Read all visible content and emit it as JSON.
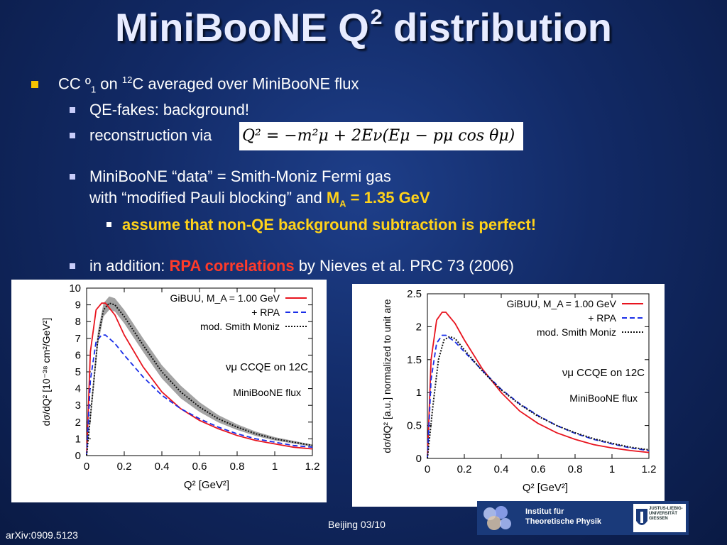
{
  "title": {
    "main": "MiniBooNE Q",
    "sup": "2",
    "rest": " distribution"
  },
  "bullets": {
    "b1": {
      "pre": "CC º",
      "sub": "1",
      "mid": " on ",
      "sup": "12",
      "post": "C averaged over MiniBooNE flux"
    },
    "b2a": "QE-fakes: background!",
    "b2b": "reconstruction via",
    "b2c_line1": "MiniBooNE “data” = Smith-Moniz Fermi gas",
    "b2c_line2_pre": "with “modified Pauli blocking” and ",
    "b2c_line2_ma": "M",
    "b2c_line2_ma_sub": "A",
    "b2c_line2_val": " = 1.35 GeV",
    "b3": "assume that non-QE background subtraction is perfect!",
    "b2d_pre": "in addition: ",
    "b2d_red": "RPA correlations",
    "b2d_post": " by Nieves et al. PRC 73 (2006)"
  },
  "formula": "Q² = −m²μ + 2Eν(Eμ − pμ cos θμ)",
  "footer": {
    "left": "arXiv:0909.5123",
    "mid": "Beijing 03/10"
  },
  "logo": {
    "line1": "Institut für",
    "line2": "Theoretische Physik",
    "uni1": "JUSTUS-LIEBIG-",
    "uni2": "UNIVERSITÄT",
    "uni3": "GIESSEN"
  },
  "colors": {
    "accent_yellow": "#ffd21a",
    "accent_red": "#ff3b2a",
    "bullet_yellow": "#f5c400",
    "bg": "#122a66"
  },
  "chart_data": [
    {
      "type": "line",
      "xlabel": "Q² [GeV²]",
      "ylabel": "dσ/dQ² [10⁻³⁸ cm²/GeV²]",
      "xlim": [
        0,
        1.2
      ],
      "ylim": [
        0,
        10
      ],
      "xticks": [
        "0",
        "0.2",
        "0.4",
        "0.6",
        "0.8",
        "1",
        "1.2"
      ],
      "yticks": [
        "0",
        "1",
        "2",
        "3",
        "4",
        "5",
        "6",
        "7",
        "8",
        "9",
        "10"
      ],
      "legend": [
        "GiBUU, M_A = 1.00 GeV",
        "+ RPA",
        "mod. Smith Moniz"
      ],
      "annotations": [
        "νμ CCQE on 12C",
        "MiniBooNE flux"
      ],
      "legend_placement": "top-right",
      "series": [
        {
          "name": "GiBUU, M_A = 1.00 GeV",
          "style": "solid",
          "color": "#e8141e",
          "x": [
            0.0,
            0.02,
            0.05,
            0.08,
            0.1,
            0.15,
            0.2,
            0.3,
            0.4,
            0.5,
            0.6,
            0.7,
            0.8,
            0.9,
            1.0,
            1.1,
            1.2
          ],
          "y": [
            0.0,
            6.2,
            8.7,
            9.1,
            9.1,
            8.4,
            7.2,
            5.3,
            3.8,
            2.8,
            2.1,
            1.6,
            1.2,
            0.9,
            0.7,
            0.5,
            0.4
          ]
        },
        {
          "name": "+ RPA",
          "style": "dashed",
          "color": "#1a2ee8",
          "x": [
            0.0,
            0.02,
            0.05,
            0.08,
            0.1,
            0.15,
            0.2,
            0.3,
            0.4,
            0.5,
            0.6,
            0.7,
            0.8,
            0.9,
            1.0,
            1.1,
            1.2
          ],
          "y": [
            0.0,
            4.5,
            6.8,
            7.2,
            7.2,
            6.7,
            6.0,
            4.7,
            3.6,
            2.8,
            2.2,
            1.7,
            1.3,
            1.0,
            0.8,
            0.6,
            0.5
          ]
        },
        {
          "name": "mod. Smith Moniz",
          "style": "dotted",
          "color": "#111111",
          "x": [
            0.0,
            0.03,
            0.06,
            0.09,
            0.12,
            0.15,
            0.2,
            0.3,
            0.4,
            0.5,
            0.6,
            0.7,
            0.8,
            0.9,
            1.0,
            1.1,
            1.2
          ],
          "y": [
            0.0,
            3.5,
            7.0,
            8.7,
            9.1,
            9.0,
            8.3,
            6.6,
            5.0,
            3.8,
            2.9,
            2.2,
            1.7,
            1.3,
            1.0,
            0.8,
            0.6
          ]
        }
      ],
      "band": {
        "around": "mod. Smith Moniz",
        "width": 0.4,
        "color": "#999999"
      }
    },
    {
      "type": "line",
      "xlabel": "Q² [GeV²]",
      "ylabel": "dσ/dQ² [a.u.] normalized to unit are",
      "xlim": [
        0,
        1.2
      ],
      "ylim": [
        0,
        2.5
      ],
      "xticks": [
        "0",
        "0.2",
        "0.4",
        "0.6",
        "0.8",
        "1",
        "1.2"
      ],
      "yticks": [
        "0",
        "0.5",
        "1",
        "1.5",
        "2",
        "2.5"
      ],
      "legend": [
        "GiBUU, M_A = 1.00 GeV",
        "+ RPA",
        "mod. Smith Moniz"
      ],
      "annotations": [
        "νμ CCQE on 12C",
        "MiniBooNE flux"
      ],
      "legend_placement": "top-right",
      "series": [
        {
          "name": "GiBUU, M_A = 1.00 GeV",
          "style": "solid",
          "color": "#e8141e",
          "x": [
            0.0,
            0.02,
            0.05,
            0.08,
            0.1,
            0.15,
            0.2,
            0.3,
            0.4,
            0.5,
            0.6,
            0.7,
            0.8,
            0.9,
            1.0,
            1.1,
            1.2
          ],
          "y": [
            0.0,
            1.5,
            2.1,
            2.22,
            2.22,
            2.05,
            1.8,
            1.35,
            1.0,
            0.72,
            0.53,
            0.39,
            0.29,
            0.21,
            0.16,
            0.12,
            0.09
          ]
        },
        {
          "name": "+ RPA",
          "style": "dashed",
          "color": "#1a2ee8",
          "x": [
            0.0,
            0.02,
            0.05,
            0.08,
            0.1,
            0.15,
            0.2,
            0.3,
            0.4,
            0.5,
            0.6,
            0.7,
            0.8,
            0.9,
            1.0,
            1.1,
            1.2
          ],
          "y": [
            0.0,
            1.2,
            1.75,
            1.87,
            1.87,
            1.77,
            1.62,
            1.33,
            1.05,
            0.83,
            0.65,
            0.5,
            0.38,
            0.29,
            0.22,
            0.16,
            0.12
          ]
        },
        {
          "name": "mod. Smith Moniz",
          "style": "dotted",
          "color": "#111111",
          "x": [
            0.0,
            0.03,
            0.06,
            0.09,
            0.12,
            0.15,
            0.2,
            0.3,
            0.4,
            0.5,
            0.6,
            0.7,
            0.8,
            0.9,
            1.0,
            1.1,
            1.2
          ],
          "y": [
            0.0,
            0.8,
            1.5,
            1.8,
            1.85,
            1.82,
            1.65,
            1.32,
            1.04,
            0.82,
            0.64,
            0.5,
            0.39,
            0.3,
            0.23,
            0.17,
            0.13
          ]
        }
      ]
    }
  ]
}
